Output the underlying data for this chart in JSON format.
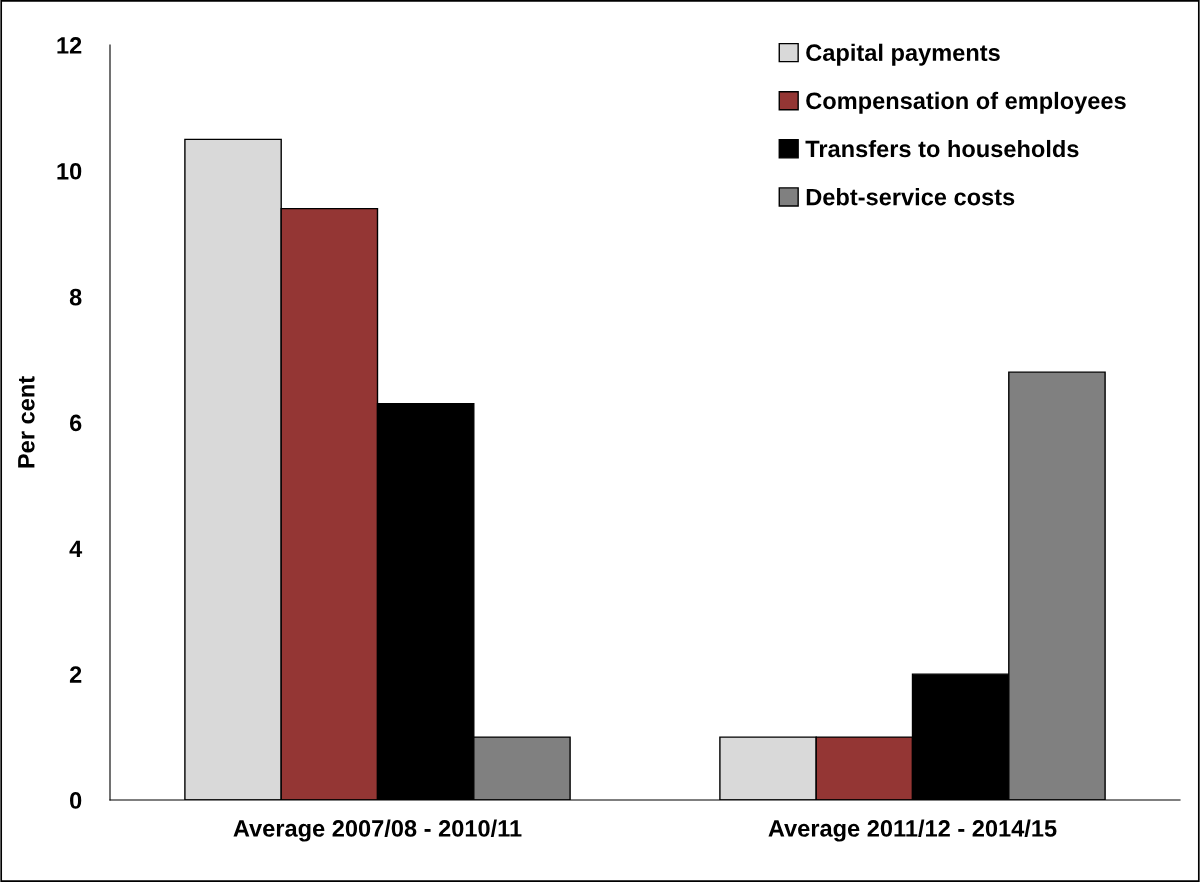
{
  "chart_data": {
    "type": "bar",
    "ylabel": "Per cent",
    "categories": [
      "Average 2007/08 - 2010/11",
      "Average 2011/12 - 2014/15"
    ],
    "series": [
      {
        "name": "Capital payments",
        "color": "#d9d9d9",
        "values": [
          10.5,
          1.0
        ]
      },
      {
        "name": "Compensation of employees",
        "color": "#943634",
        "values": [
          9.4,
          1.0
        ]
      },
      {
        "name": "Transfers to households",
        "color": "#000000",
        "values": [
          6.3,
          2.0
        ]
      },
      {
        "name": "Debt-service costs",
        "color": "#808080",
        "values": [
          1.0,
          6.8
        ]
      }
    ],
    "ylim": [
      0,
      12
    ],
    "yticks": [
      0,
      2,
      4,
      6,
      8,
      10,
      12
    ],
    "grid": false,
    "legend": "top right"
  }
}
